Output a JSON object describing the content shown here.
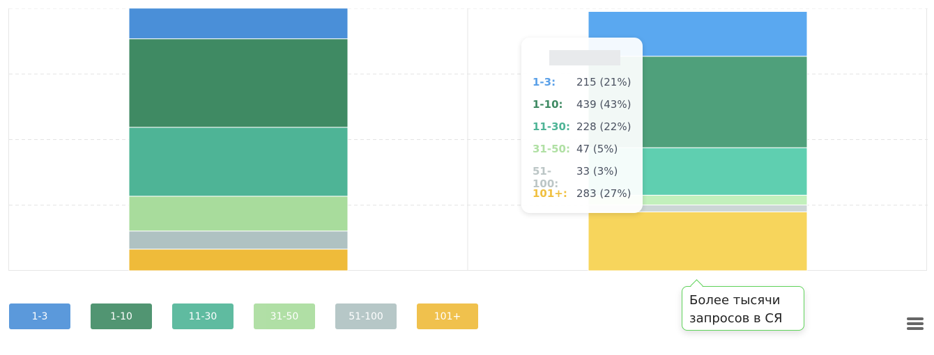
{
  "chart_data": {
    "type": "bar",
    "stacked": true,
    "grid": true,
    "ylim": [
      0,
      1260
    ],
    "categories": [
      "",
      ""
    ],
    "series": [
      {
        "name": "1-3",
        "color": "#4a8fd8",
        "colors": [
          "#4a8fd8",
          "#5aa8f0"
        ],
        "values": [
          147,
          215
        ]
      },
      {
        "name": "1-10",
        "color": "#3f8a63",
        "colors": [
          "#3f8a63",
          "#4fa07b"
        ],
        "values": [
          425,
          439
        ]
      },
      {
        "name": "11-30",
        "color": "#4eb496",
        "colors": [
          "#4eb496",
          "#5fcfb0"
        ],
        "values": [
          331,
          228
        ]
      },
      {
        "name": "31-50",
        "color": "#a8dc9c",
        "colors": [
          "#a8dc9c",
          "#c2f0bc"
        ],
        "values": [
          167,
          47
        ]
      },
      {
        "name": "51-100",
        "color": "#afc2c2",
        "colors": [
          "#afc2c2",
          "#ccd6d6"
        ],
        "values": [
          87,
          33
        ]
      },
      {
        "name": "101+",
        "color": "#efbb3a",
        "colors": [
          "#efbb3a",
          "#f7d55c"
        ],
        "values": [
          104,
          283
        ]
      }
    ],
    "legend_position": "bottom-left"
  },
  "tooltip": {
    "rows": [
      {
        "label": "1-3:",
        "value": "215 (21%)",
        "color": "#5aa0e8"
      },
      {
        "label": "1-10:",
        "value": "439 (43%)",
        "color": "#3f8a63"
      },
      {
        "label": "11-30:",
        "value": "228 (22%)",
        "color": "#4eb496"
      },
      {
        "label": "31-50:",
        "value": "47 (5%)",
        "color": "#b0e0a4"
      },
      {
        "label": "51-100:",
        "value": "33 (3%)",
        "color": "#bcc6c6"
      },
      {
        "label": "101+:",
        "value": "283 (27%)",
        "color": "#f0c040"
      }
    ]
  },
  "note": {
    "line1": "Более тысячи",
    "line2": "запросов в СЯ"
  },
  "menu_icon": "hamburger-icon"
}
